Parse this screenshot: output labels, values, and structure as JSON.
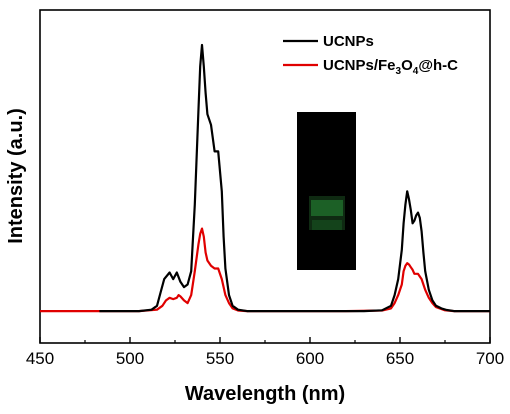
{
  "chart_data": {
    "type": "line",
    "title": "",
    "xlabel": "Wavelength (nm)",
    "ylabel": "Intensity (a.u.)",
    "xlim": [
      450,
      700
    ],
    "ylim": [
      -0.12,
      1.0
    ],
    "x_ticks": [
      "450",
      "500",
      "550",
      "600",
      "650",
      "700"
    ],
    "y_ticks_shown": false,
    "grid": false,
    "legend_position": "top-right",
    "inset": "photo of a vial showing faint green luminescence",
    "series": [
      {
        "name": "UCNPs",
        "color": "#000000",
        "x": [
          483,
          505,
          512,
          515,
          517,
          519,
          522,
          524,
          526,
          528,
          530,
          532,
          534,
          536,
          538,
          539,
          540,
          541,
          542,
          543,
          545,
          547,
          549,
          551,
          552,
          553,
          555,
          557,
          560,
          565,
          575,
          590,
          610,
          630,
          640,
          645,
          647,
          649,
          651,
          652,
          653,
          654,
          655,
          656,
          657,
          658,
          659,
          660,
          661,
          662,
          663,
          664,
          666,
          668,
          670,
          673,
          676,
          680,
          690,
          700
        ],
        "y": [
          0.0,
          0.0,
          0.005,
          0.02,
          0.07,
          0.12,
          0.145,
          0.12,
          0.145,
          0.11,
          0.09,
          0.1,
          0.15,
          0.4,
          0.75,
          0.92,
          1.0,
          0.92,
          0.82,
          0.74,
          0.7,
          0.6,
          0.6,
          0.45,
          0.28,
          0.16,
          0.06,
          0.02,
          0.005,
          0.0,
          0.0,
          0.0,
          0.0,
          0.0,
          0.003,
          0.02,
          0.06,
          0.12,
          0.23,
          0.33,
          0.4,
          0.45,
          0.42,
          0.38,
          0.33,
          0.34,
          0.36,
          0.37,
          0.35,
          0.3,
          0.22,
          0.15,
          0.08,
          0.04,
          0.02,
          0.01,
          0.004,
          0.0,
          0.0,
          0.0
        ]
      },
      {
        "name": "UCNPs/Fe3O4@h-C",
        "color": "#e00000",
        "x": [
          450,
          505,
          515,
          518,
          520,
          522,
          524,
          526,
          527,
          528,
          530,
          532,
          534,
          536,
          538,
          539,
          540,
          541,
          542,
          543,
          545,
          547,
          549,
          551,
          552,
          553,
          555,
          557,
          560,
          565,
          580,
          620,
          640,
          645,
          647,
          649,
          651,
          652,
          653,
          654,
          655,
          656,
          657,
          658,
          659,
          660,
          661,
          662,
          663,
          664,
          666,
          668,
          670,
          675,
          680,
          700
        ],
        "y": [
          0.0,
          0.0,
          0.005,
          0.02,
          0.04,
          0.05,
          0.045,
          0.05,
          0.06,
          0.055,
          0.04,
          0.03,
          0.06,
          0.15,
          0.25,
          0.29,
          0.31,
          0.28,
          0.22,
          0.19,
          0.17,
          0.16,
          0.16,
          0.12,
          0.09,
          0.06,
          0.03,
          0.01,
          0.002,
          0.0,
          0.0,
          0.0,
          0.002,
          0.01,
          0.03,
          0.06,
          0.1,
          0.15,
          0.17,
          0.18,
          0.175,
          0.165,
          0.155,
          0.14,
          0.14,
          0.14,
          0.13,
          0.12,
          0.1,
          0.08,
          0.05,
          0.03,
          0.015,
          0.003,
          0.0,
          0.0
        ]
      }
    ],
    "legend": {
      "entries": [
        {
          "series": 0,
          "text": "UCNPs"
        },
        {
          "series": 1,
          "text_main": "UCNPs/Fe",
          "sub1": "3",
          "text_mid": "O",
          "sub2": "4",
          "text_end": "@h-C"
        }
      ]
    }
  }
}
